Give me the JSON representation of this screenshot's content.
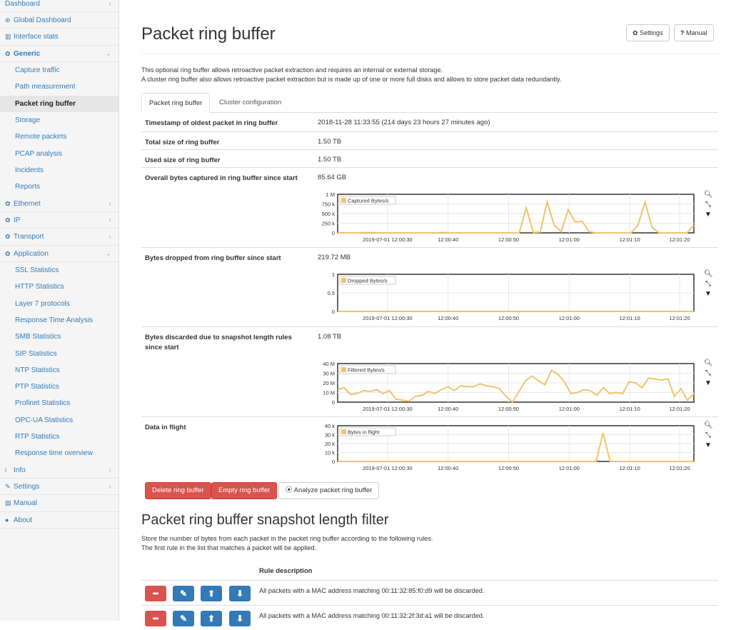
{
  "sidebar": {
    "items": [
      {
        "label": "Dashboard",
        "icon": "",
        "type": "top",
        "chevron": "‹",
        "name": "sidebar-item-dashboard"
      },
      {
        "label": "Global Dashboard",
        "icon": "dashboard-icon",
        "glyph": "⊛",
        "type": "main",
        "name": "sidebar-item-global-dashboard"
      },
      {
        "label": "Interface stats",
        "icon": "bar-chart-icon",
        "glyph": "▥",
        "type": "main",
        "name": "sidebar-item-interface-stats"
      },
      {
        "label": "Generic",
        "icon": "gear-icon",
        "glyph": "✿",
        "type": "main",
        "bold": true,
        "chevron": "⌄",
        "name": "sidebar-item-generic"
      },
      {
        "label": "Capture traffic",
        "type": "sub",
        "name": "sidebar-item-capture-traffic"
      },
      {
        "label": "Path measurement",
        "type": "sub",
        "name": "sidebar-item-path-measurement"
      },
      {
        "label": "Packet ring buffer",
        "type": "sub",
        "active": true,
        "name": "sidebar-item-packet-ring-buffer"
      },
      {
        "label": "Storage",
        "type": "sub",
        "name": "sidebar-item-storage"
      },
      {
        "label": "Remote packets",
        "type": "sub",
        "name": "sidebar-item-remote-packets"
      },
      {
        "label": "PCAP analysis",
        "type": "sub",
        "name": "sidebar-item-pcap-analysis"
      },
      {
        "label": "Incidents",
        "type": "sub",
        "name": "sidebar-item-incidents"
      },
      {
        "label": "Reports",
        "type": "sub",
        "name": "sidebar-item-reports"
      },
      {
        "label": "Ethernet",
        "icon": "gear-icon",
        "glyph": "✿",
        "type": "main",
        "chevron": "‹",
        "name": "sidebar-item-ethernet"
      },
      {
        "label": "IP",
        "icon": "gear-icon",
        "glyph": "✿",
        "type": "main",
        "chevron": "‹",
        "name": "sidebar-item-ip"
      },
      {
        "label": "Transport",
        "icon": "gear-icon",
        "glyph": "✿",
        "type": "main",
        "chevron": "‹",
        "name": "sidebar-item-transport"
      },
      {
        "label": "Application",
        "icon": "gear-icon",
        "glyph": "✿",
        "type": "main",
        "chevron": "⌄",
        "name": "sidebar-item-application"
      },
      {
        "label": "SSL Statistics",
        "type": "sub",
        "name": "sidebar-item-ssl-statistics"
      },
      {
        "label": "HTTP Statistics",
        "type": "sub",
        "name": "sidebar-item-http-statistics"
      },
      {
        "label": "Layer 7 protocols",
        "type": "sub",
        "name": "sidebar-item-layer7-protocols"
      },
      {
        "label": "Response Time Analysis",
        "type": "sub",
        "name": "sidebar-item-response-time-analysis"
      },
      {
        "label": "SMB Statistics",
        "type": "sub",
        "name": "sidebar-item-smb-statistics"
      },
      {
        "label": "SIP Statistics",
        "type": "sub",
        "name": "sidebar-item-sip-statistics"
      },
      {
        "label": "NTP Statistics",
        "type": "sub",
        "name": "sidebar-item-ntp-statistics"
      },
      {
        "label": "PTP Statistics",
        "type": "sub",
        "name": "sidebar-item-ptp-statistics"
      },
      {
        "label": "Profinet Statistics",
        "type": "sub",
        "name": "sidebar-item-profinet-statistics"
      },
      {
        "label": "OPC-UA Statistics",
        "type": "sub",
        "name": "sidebar-item-opcua-statistics"
      },
      {
        "label": "RTP Statistics",
        "type": "sub",
        "name": "sidebar-item-rtp-statistics"
      },
      {
        "label": "Response time overview",
        "type": "sub",
        "name": "sidebar-item-response-time-overview"
      },
      {
        "label": "Info",
        "icon": "info-icon",
        "glyph": "i",
        "type": "main",
        "chevron": "‹",
        "name": "sidebar-item-info"
      },
      {
        "label": "Settings",
        "icon": "wrench-icon",
        "glyph": "✎",
        "type": "main",
        "chevron": "‹",
        "name": "sidebar-item-settings"
      },
      {
        "label": "Manual",
        "icon": "book-icon",
        "glyph": "▤",
        "type": "main",
        "name": "sidebar-item-manual"
      },
      {
        "label": "About",
        "icon": "info-circle-icon",
        "glyph": "●",
        "type": "main",
        "name": "sidebar-item-about"
      }
    ]
  },
  "header": {
    "title": "Packet ring buffer",
    "settings_label": "Settings",
    "manual_label": "Manual",
    "settings_icon": "gear-icon",
    "manual_icon": "question-icon"
  },
  "intro": {
    "line1": "This optional ring buffer allows retroactive packet extraction and requires an internal or external storage.",
    "line2": "A cluster ring buffer also allows retroactive packet extraction but is made up of one or more full disks and allows to store packet data redundantly."
  },
  "tabs": [
    {
      "label": "Packet ring buffer",
      "active": true
    },
    {
      "label": "Cluster configuration",
      "active": false
    }
  ],
  "rows": {
    "oldest_label": "Timestamp of oldest packet in ring buffer",
    "oldest_value": "2018-11-28 11:33:55 (214 days 23 hours 27 minutes ago)",
    "total_label": "Total size of ring buffer",
    "total_value": "1.50 TB",
    "used_label": "Used size of ring buffer",
    "used_value": "1.50 TB",
    "captured_label": "Overall bytes captured in ring buffer since start",
    "captured_value": "85.64 GB",
    "dropped_label": "Bytes dropped from ring buffer since start",
    "dropped_value": "219.72 MB",
    "discarded_label": "Bytes discarded due to snapshot length rules since start",
    "discarded_value": "1.08 TB",
    "inflight_label": "Data in flight"
  },
  "chart_tools": {
    "zoom_icon": "search-icon",
    "compress_icon": "compress-icon",
    "menu_icon": "caret-down-icon"
  },
  "chart_data": [
    {
      "type": "line",
      "title": "",
      "series": [
        {
          "name": "Captured Bytes/s",
          "color": "#f0c36d",
          "values": [
            0,
            0,
            0,
            0,
            10000,
            5000,
            0,
            0,
            0,
            5000,
            0,
            0,
            0,
            0,
            0,
            10000,
            0,
            0,
            0,
            0,
            0,
            0,
            0,
            0,
            0,
            0,
            0,
            650000,
            10000,
            20000,
            800000,
            200000,
            30000,
            600000,
            280000,
            300000,
            30000,
            0,
            0,
            0,
            0,
            0,
            0,
            200000,
            800000,
            150000,
            0,
            0,
            0,
            0,
            0,
            200000
          ]
        }
      ],
      "x_ticks": [
        "2019-07-01 12:00:30",
        "12:00:40",
        "12:00:50",
        "12:01:00",
        "12:01:10",
        "12:01:20"
      ],
      "y_ticks": [
        "0",
        "250 k",
        "500 k",
        "750 k",
        "1 M"
      ],
      "ylim": [
        0,
        1000000
      ]
    },
    {
      "type": "line",
      "title": "",
      "series": [
        {
          "name": "Dropped Bytes/s",
          "color": "#f0c36d",
          "values": [
            0,
            0,
            0,
            0,
            0,
            0,
            0,
            0,
            0,
            0,
            0,
            0,
            0,
            0,
            0,
            0,
            0,
            0,
            0,
            0,
            0,
            0,
            0,
            0,
            0,
            0,
            0,
            0,
            0,
            0,
            0,
            0,
            0,
            0,
            0,
            0,
            0,
            0,
            0,
            0,
            0,
            0,
            0,
            0,
            0,
            0,
            0,
            0,
            0,
            0,
            0,
            0
          ]
        }
      ],
      "x_ticks": [
        "2019-07-01 12:00:30",
        "12:00:40",
        "12:00:50",
        "12:01:00",
        "12:01:10",
        "12:01:20"
      ],
      "y_ticks": [
        "0",
        "0.5",
        "1"
      ],
      "ylim": [
        0,
        1
      ]
    },
    {
      "type": "line",
      "title": "",
      "series": [
        {
          "name": "Filtered Bytes/s",
          "color": "#f0c36d",
          "values": [
            13000000,
            15000000,
            8000000,
            9000000,
            12000000,
            11000000,
            13000000,
            9000000,
            12000000,
            3000000,
            2000000,
            1000000,
            6000000,
            7000000,
            11000000,
            9000000,
            13000000,
            16000000,
            12000000,
            17000000,
            16000000,
            16000000,
            19000000,
            17000000,
            16000000,
            14000000,
            6000000,
            0,
            11000000,
            22000000,
            27000000,
            22000000,
            18000000,
            33000000,
            29000000,
            21000000,
            9000000,
            10000000,
            13000000,
            12000000,
            7000000,
            15000000,
            9000000,
            10000000,
            9000000,
            21000000,
            20000000,
            15000000,
            25000000,
            24000000,
            23000000,
            24000000,
            6000000,
            14000000,
            2000000,
            9000000
          ]
        }
      ],
      "x_ticks": [
        "2019-07-01 12:00:30",
        "12:00:40",
        "12:00:50",
        "12:01:00",
        "12:01:10",
        "12:01:20"
      ],
      "y_ticks": [
        "0",
        "10 M",
        "20 M",
        "30 M",
        "40 M"
      ],
      "ylim": [
        0,
        40000000
      ]
    },
    {
      "type": "line",
      "title": "",
      "series": [
        {
          "name": "Bytes in flight",
          "color": "#f0c36d",
          "values": [
            0,
            0,
            0,
            0,
            0,
            0,
            0,
            0,
            0,
            0,
            0,
            0,
            0,
            0,
            0,
            0,
            0,
            0,
            0,
            0,
            0,
            0,
            0,
            0,
            0,
            0,
            0,
            0,
            0,
            0,
            0,
            0,
            0,
            0,
            0,
            0,
            0,
            0,
            32000,
            0,
            0,
            0,
            0,
            0,
            0,
            0,
            0,
            0,
            0,
            0,
            0,
            0
          ]
        }
      ],
      "x_ticks": [
        "2019-07-01 12:00:30",
        "12:00:40",
        "12:00:50",
        "12:01:00",
        "12:01:10",
        "12:01:20"
      ],
      "y_ticks": [
        "0",
        "10 k",
        "20 k",
        "30 k",
        "40 k"
      ],
      "ylim": [
        0,
        40000
      ]
    }
  ],
  "actions": {
    "delete_label": "Delete ring buffer",
    "empty_label": "Empty ring buffer",
    "analyze_label": "Analyze packet ring buffer",
    "analyze_icon": "play-circle-icon"
  },
  "snapshot": {
    "title": "Packet ring buffer snapshot length filter",
    "line1": "Store the number of bytes from each packet in the packet ring buffer according to the following rules.",
    "line2": "The first rule in the list that matches a packet will be applied.",
    "column_header": "Rule description",
    "rules": [
      "All packets with a MAC address matching 00:11:32:85:f0:d9 will be discarded.",
      "All packets with a MAC address matching 00:11:32:2f:3d:a1 will be discarded."
    ]
  },
  "colors": {
    "accent": "#337ab7",
    "danger": "#d9534f",
    "series": "#f0c36d"
  }
}
